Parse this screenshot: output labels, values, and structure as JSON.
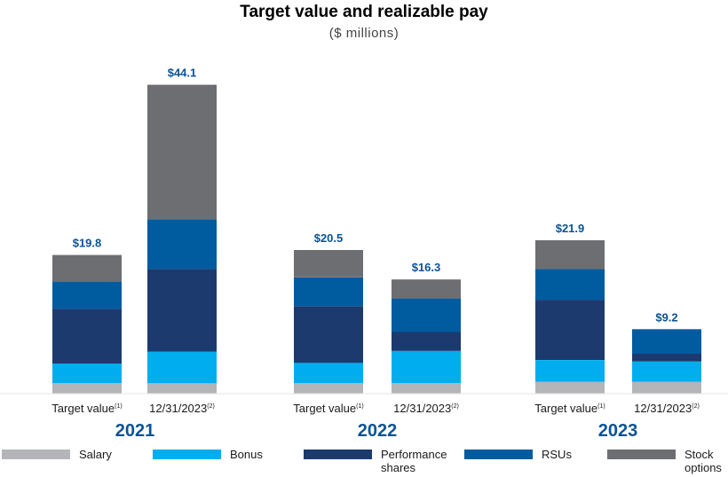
{
  "chart_data": {
    "type": "bar",
    "stacked": true,
    "title": "Target value and realizable pay",
    "subtitle": "($ millions)",
    "xlabel": "",
    "ylabel": "",
    "ylim": [
      0,
      46
    ],
    "grid": false,
    "legend_position": "bottom",
    "groups": [
      {
        "year": "2021",
        "bars": [
          {
            "label": "Target value",
            "footnote": "(1)",
            "total_label": "$19.8"
          },
          {
            "label": "12/31/2023",
            "footnote": "(2)",
            "total_label": "$44.1"
          }
        ]
      },
      {
        "year": "2022",
        "bars": [
          {
            "label": "Target value",
            "footnote": "(1)",
            "total_label": "$20.5"
          },
          {
            "label": "12/31/2023",
            "footnote": "(2)",
            "total_label": "$16.3"
          }
        ]
      },
      {
        "year": "2023",
        "bars": [
          {
            "label": "Target value",
            "footnote": "(1)",
            "total_label": "$21.9"
          },
          {
            "label": "12/31/2023",
            "footnote": "(2)",
            "total_label": "$9.2"
          }
        ]
      }
    ],
    "series": [
      {
        "name": "Salary",
        "color": "#b3b5b8",
        "values": [
          1.5,
          1.5,
          1.5,
          1.5,
          1.7,
          1.7
        ]
      },
      {
        "name": "Bonus",
        "color": "#00aeef",
        "values": [
          2.8,
          4.5,
          2.9,
          4.6,
          3.1,
          2.9
        ]
      },
      {
        "name": "Performance shares",
        "color": "#1c3a6e",
        "values": [
          7.8,
          11.8,
          8.1,
          2.7,
          8.6,
          1.1
        ]
      },
      {
        "name": "RSUs",
        "color": "#005b9f",
        "values": [
          3.9,
          7.1,
          4.1,
          4.8,
          4.4,
          3.5
        ]
      },
      {
        "name": "Stock options",
        "color": "#6d6e71",
        "values": [
          3.8,
          19.2,
          3.9,
          2.7,
          4.1,
          0.0
        ]
      }
    ]
  }
}
